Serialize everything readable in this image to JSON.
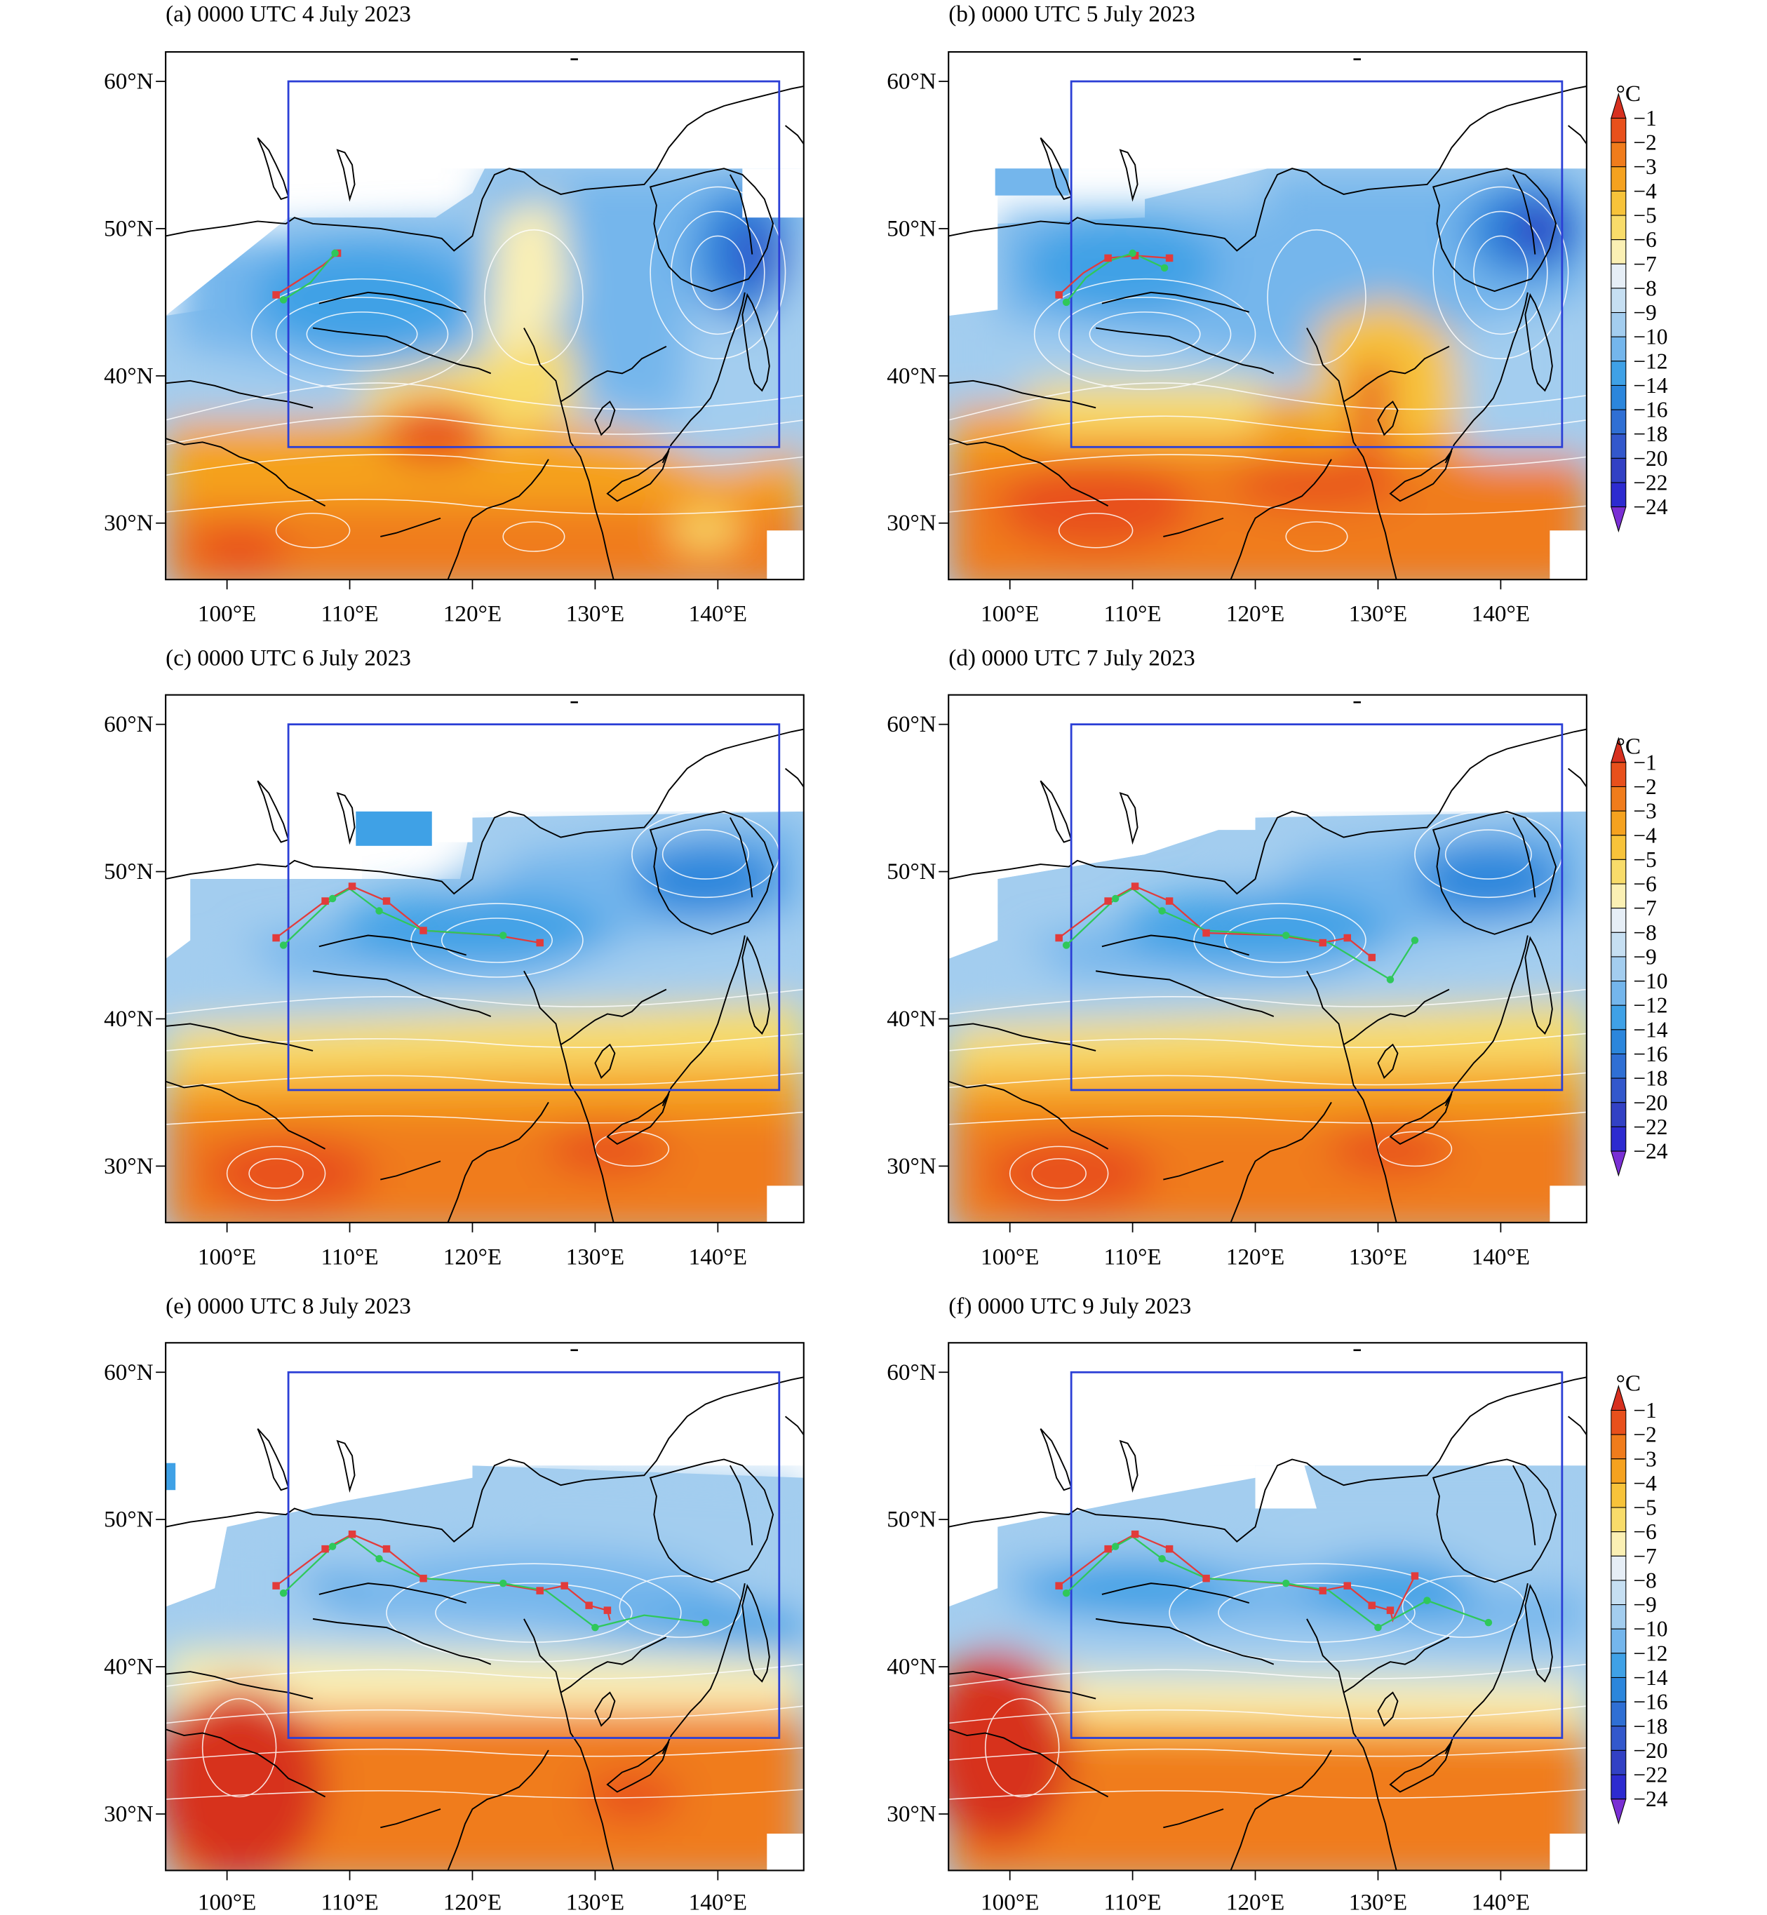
{
  "lat_labels": [
    "60°N",
    "50°N",
    "40°N",
    "30°N"
  ],
  "lon_labels": [
    "100°E",
    "110°E",
    "120°E",
    "130°E",
    "140°E"
  ],
  "colorbar_unit": "°C",
  "colorbar_levels": [
    "−1",
    "−2",
    "−3",
    "−4",
    "−5",
    "−6",
    "−7",
    "−8",
    "−9",
    "−10",
    "−12",
    "−14",
    "−16",
    "−18",
    "−20",
    "−22",
    "−24"
  ],
  "colorbar_colors": [
    "#d7301f",
    "#e8501c",
    "#f07c1c",
    "#f5a21f",
    "#f7c33a",
    "#f8dc6a",
    "#fbf0b4",
    "#e6eef6",
    "#c6dff2",
    "#a3cdef",
    "#74b6ec",
    "#3fa1e6",
    "#2b86dc",
    "#2f6fd4",
    "#3358cc",
    "#3241c4",
    "#2d2bd0",
    "#7a2fd4"
  ],
  "domain_box_color": "#2b3fd6",
  "track_colors": {
    "red": "#e23b3b",
    "green": "#2fc85a"
  },
  "panels": [
    {
      "label": "(a) 0000 UTC 4 July 2023"
    },
    {
      "label": "(b) 0000 UTC 5 July 2023"
    },
    {
      "label": "(c) 0000 UTC 6 July 2023"
    },
    {
      "label": "(d) 0000 UTC 7 July 2023"
    },
    {
      "label": "(e) 0000 UTC 8 July 2023"
    },
    {
      "label": "(f) 0000 UTC 9 July 2023"
    }
  ]
}
